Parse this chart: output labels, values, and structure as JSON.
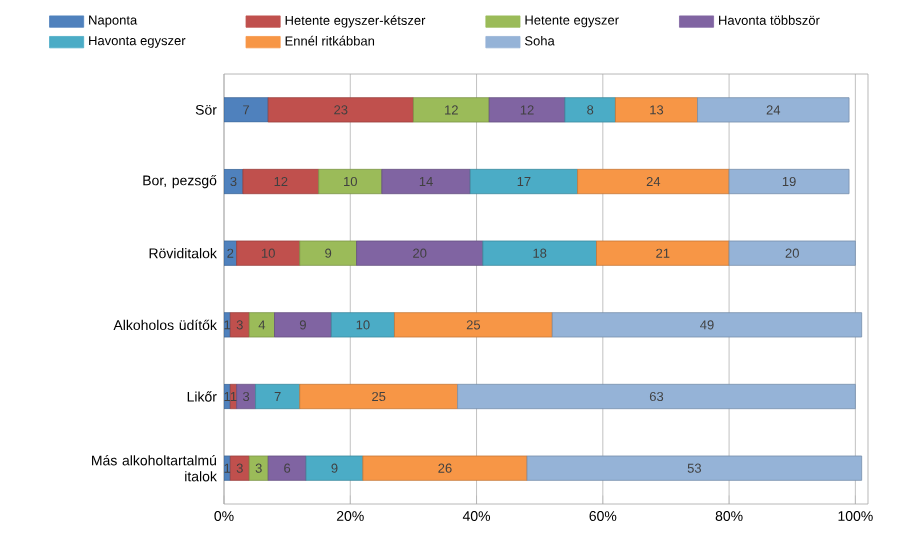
{
  "chart_data": {
    "type": "bar",
    "orientation": "horizontal",
    "stacked": true,
    "data_labels": true,
    "grid": "x",
    "legend": "top",
    "categories": [
      "Sör",
      "Bor, pezsgő",
      "Röviditalok",
      "Alkoholos üdítők",
      "Likőr",
      "Más alkoholtartalmú italok"
    ],
    "series": [
      {
        "name": "Naponta",
        "color": "#4f81bd",
        "values": [
          7,
          3,
          2,
          1,
          1,
          1
        ]
      },
      {
        "name": "Hetente egyszer-kétszer",
        "color": "#c0504d",
        "values": [
          23,
          12,
          10,
          3,
          1,
          3
        ]
      },
      {
        "name": "Hetente egyszer",
        "color": "#9bbb59",
        "values": [
          12,
          10,
          9,
          4,
          null,
          3
        ]
      },
      {
        "name": "Havonta többször",
        "color": "#8064a2",
        "values": [
          12,
          14,
          20,
          9,
          3,
          6
        ]
      },
      {
        "name": "Havonta egyszer",
        "color": "#4bacc6",
        "values": [
          8,
          17,
          18,
          10,
          7,
          9
        ]
      },
      {
        "name": "Ennél ritkábban",
        "color": "#f79646",
        "values": [
          13,
          24,
          21,
          25,
          25,
          26
        ]
      },
      {
        "name": "Soha",
        "color": "#95b3d7",
        "values": [
          24,
          19,
          20,
          49,
          63,
          53
        ]
      }
    ],
    "xlim": [
      0,
      102
    ],
    "xticks": [
      {
        "value": 0,
        "label": "0%"
      },
      {
        "value": 20,
        "label": "20%"
      },
      {
        "value": 40,
        "label": "40%"
      },
      {
        "value": 60,
        "label": "60%"
      },
      {
        "value": 80,
        "label": "80%"
      },
      {
        "value": 100,
        "label": "100%"
      }
    ]
  }
}
